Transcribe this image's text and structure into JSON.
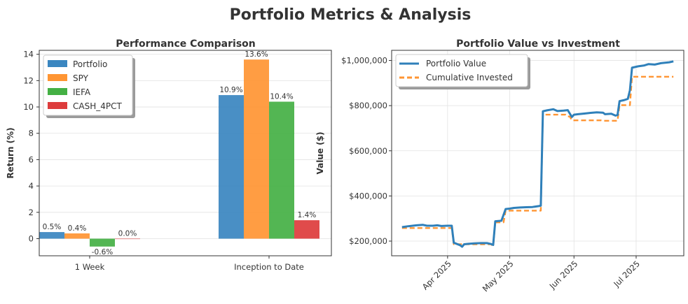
{
  "title": "Portfolio Metrics & Analysis",
  "chart_data": [
    {
      "type": "bar",
      "title": "Performance Comparison",
      "xlabel": "",
      "ylabel": "Return (%)",
      "categories": [
        "1 Week",
        "Inception to Date"
      ],
      "ylim": [
        -1.3,
        14.3
      ],
      "yticks": [
        0,
        2,
        4,
        6,
        8,
        10,
        12,
        14
      ],
      "grid": true,
      "legend_position": "top-left",
      "series": [
        {
          "name": "Portfolio",
          "values": [
            0.5,
            10.9
          ],
          "labels": [
            "0.5%",
            "10.9%"
          ],
          "color": "#3a86c0"
        },
        {
          "name": "SPY",
          "values": [
            0.4,
            13.6
          ],
          "labels": [
            "0.4%",
            "13.6%"
          ],
          "color": "#ff9533"
        },
        {
          "name": "IEFA",
          "values": [
            -0.6,
            10.4
          ],
          "labels": [
            "-0.6%",
            "10.4%"
          ],
          "color": "#44b044"
        },
        {
          "name": "CASH_4PCT",
          "values": [
            0.0,
            1.4
          ],
          "labels": [
            "0.0%",
            "1.4%"
          ],
          "color": "#dd3c3c"
        }
      ]
    },
    {
      "type": "line",
      "title": "Portfolio Value vs Investment",
      "xlabel": "",
      "ylabel": "Value ($)",
      "x_type": "date",
      "xlim": [
        "2025-03-05",
        "2025-07-24"
      ],
      "ylim": [
        135000,
        1045000
      ],
      "xticks": [
        {
          "date": "2025-04-01",
          "label": "Apr 2025"
        },
        {
          "date": "2025-05-01",
          "label": "May 2025"
        },
        {
          "date": "2025-06-01",
          "label": "Jun 2025"
        },
        {
          "date": "2025-07-01",
          "label": "Jul 2025"
        }
      ],
      "yticks": [
        {
          "value": 200000,
          "label": "$200,000"
        },
        {
          "value": 400000,
          "label": "$400,000"
        },
        {
          "value": 600000,
          "label": "$600,000"
        },
        {
          "value": 800000,
          "label": "$800,000"
        },
        {
          "value": 1000000,
          "label": "$1,000,000"
        }
      ],
      "grid": true,
      "legend_position": "top-left",
      "series": [
        {
          "name": "Portfolio Value",
          "color": "#2f80ba",
          "style": "solid",
          "points": [
            [
              "2025-03-10",
              262000
            ],
            [
              "2025-03-13",
              266000
            ],
            [
              "2025-03-17",
              270000
            ],
            [
              "2025-03-20",
              272000
            ],
            [
              "2025-03-22",
              268000
            ],
            [
              "2025-03-25",
              268000
            ],
            [
              "2025-03-27",
              270000
            ],
            [
              "2025-03-29",
              267000
            ],
            [
              "2025-04-01",
              268000
            ],
            [
              "2025-04-03",
              268000
            ],
            [
              "2025-04-04",
              193000
            ],
            [
              "2025-04-07",
              182000
            ],
            [
              "2025-04-08",
              175000
            ],
            [
              "2025-04-09",
              186000
            ],
            [
              "2025-04-11",
              188000
            ],
            [
              "2025-04-14",
              190000
            ],
            [
              "2025-04-17",
              191000
            ],
            [
              "2025-04-20",
              191000
            ],
            [
              "2025-04-22",
              187000
            ],
            [
              "2025-04-23",
              183000
            ],
            [
              "2025-04-24",
              288000
            ],
            [
              "2025-04-27",
              290000
            ],
            [
              "2025-04-29",
              342000
            ],
            [
              "2025-05-01",
              344000
            ],
            [
              "2025-05-03",
              347000
            ],
            [
              "2025-05-06",
              349000
            ],
            [
              "2025-05-09",
              350000
            ],
            [
              "2025-05-12",
              351000
            ],
            [
              "2025-05-15",
              355000
            ],
            [
              "2025-05-16",
              357000
            ],
            [
              "2025-05-17",
              775000
            ],
            [
              "2025-05-19",
              779000
            ],
            [
              "2025-05-22",
              784000
            ],
            [
              "2025-05-24",
              776000
            ],
            [
              "2025-05-27",
              778000
            ],
            [
              "2025-05-29",
              780000
            ],
            [
              "2025-05-30",
              765000
            ],
            [
              "2025-05-31",
              750000
            ],
            [
              "2025-06-01",
              760000
            ],
            [
              "2025-06-03",
              762000
            ],
            [
              "2025-06-06",
              765000
            ],
            [
              "2025-06-09",
              768000
            ],
            [
              "2025-06-12",
              770000
            ],
            [
              "2025-06-15",
              769000
            ],
            [
              "2025-06-16",
              762000
            ],
            [
              "2025-06-19",
              764000
            ],
            [
              "2025-06-21",
              756000
            ],
            [
              "2025-06-22",
              758000
            ],
            [
              "2025-06-23",
              820000
            ],
            [
              "2025-06-25",
              824000
            ],
            [
              "2025-06-27",
              830000
            ],
            [
              "2025-06-28",
              868000
            ],
            [
              "2025-06-29",
              968000
            ],
            [
              "2025-07-02",
              974000
            ],
            [
              "2025-07-05",
              978000
            ],
            [
              "2025-07-07",
              984000
            ],
            [
              "2025-07-10",
              982000
            ],
            [
              "2025-07-13",
              988000
            ],
            [
              "2025-07-15",
              990000
            ],
            [
              "2025-07-17",
              992000
            ],
            [
              "2025-07-19",
              996000
            ]
          ]
        },
        {
          "name": "Cumulative Invested",
          "color": "#ff9533",
          "style": "dashed",
          "points": [
            [
              "2025-03-10",
              258000
            ],
            [
              "2025-04-03",
              258000
            ],
            [
              "2025-04-04",
              186000
            ],
            [
              "2025-04-07",
              186000
            ],
            [
              "2025-04-22",
              186000
            ],
            [
              "2025-04-23",
              176000
            ],
            [
              "2025-04-24",
              283000
            ],
            [
              "2025-04-28",
              283000
            ],
            [
              "2025-04-29",
              335000
            ],
            [
              "2025-05-16",
              335000
            ],
            [
              "2025-05-17",
              760000
            ],
            [
              "2025-05-28",
              760000
            ],
            [
              "2025-05-29",
              752000
            ],
            [
              "2025-05-30",
              752000
            ],
            [
              "2025-05-31",
              735000
            ],
            [
              "2025-06-14",
              735000
            ],
            [
              "2025-06-15",
              733000
            ],
            [
              "2025-06-22",
              733000
            ],
            [
              "2025-06-23",
              802000
            ],
            [
              "2025-06-28",
              802000
            ],
            [
              "2025-06-29",
              928000
            ],
            [
              "2025-07-19",
              928000
            ]
          ]
        }
      ]
    }
  ]
}
